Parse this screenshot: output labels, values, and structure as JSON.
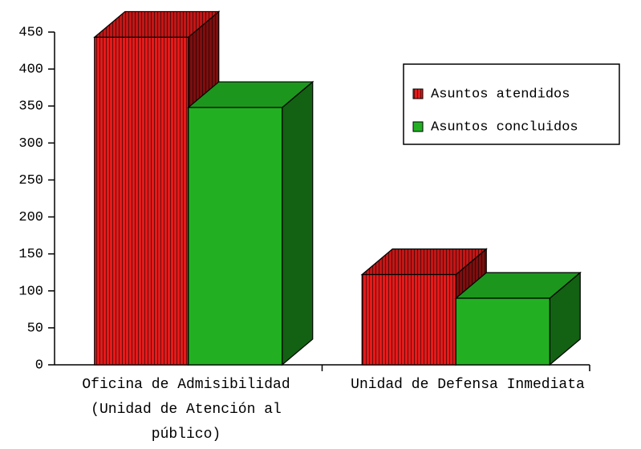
{
  "chart_data": {
    "type": "bar3d",
    "categories": [
      "Oficina de Admisibilidad (Unidad de Atención al público)",
      "Unidad de Defensa Inmediata"
    ],
    "series": [
      {
        "name": "Asuntos atendidos",
        "color": "#e41a1a",
        "hatch": true,
        "values": [
          443,
          122
        ]
      },
      {
        "name": "Asuntos concluidos",
        "color": "#22b022",
        "hatch": false,
        "values": [
          348,
          90
        ]
      }
    ],
    "ylim": [
      0,
      450
    ],
    "yticks": [
      0,
      50,
      100,
      150,
      200,
      250,
      300,
      350,
      400,
      450
    ],
    "legend": "upper right"
  }
}
